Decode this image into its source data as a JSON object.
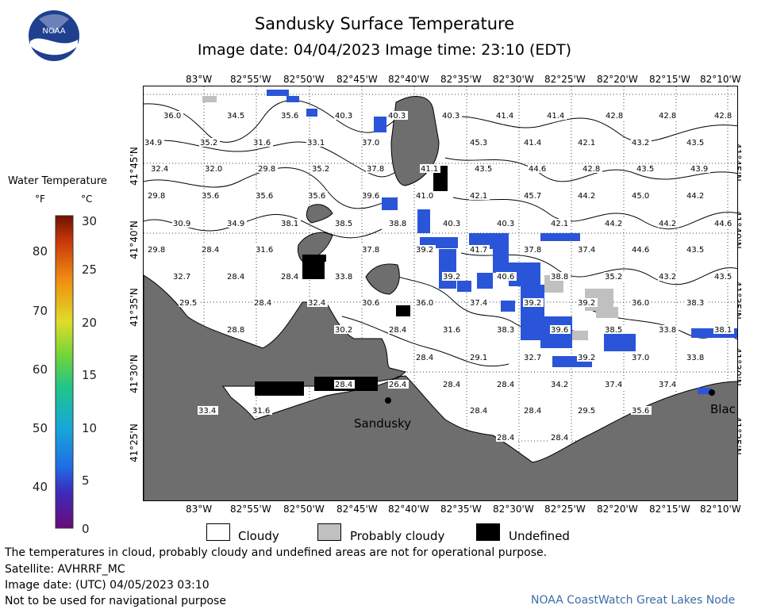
{
  "header": {
    "title": "Sandusky Surface Temperature",
    "subtitle": "Image date: 04/04/2023     Image time: 23:10 (EDT)"
  },
  "legend": {
    "title": "Water Temperature",
    "unit_f": "°F",
    "unit_c": "°C",
    "f_ticks": [
      "80",
      "70",
      "60",
      "50",
      "40"
    ],
    "c_ticks": [
      "30",
      "25",
      "20",
      "15",
      "10",
      "5",
      "0"
    ],
    "categories": [
      {
        "label": "Cloudy",
        "color": "#ffffff"
      },
      {
        "label": "Probably cloudy",
        "color": "#c0c0c0"
      },
      {
        "label": "Undefined",
        "color": "#000000"
      }
    ]
  },
  "axes": {
    "top_lon": [
      "83°W",
      "82°55'W",
      "82°50'W",
      "82°45'W",
      "82°40'W",
      "82°35'W",
      "82°30'W",
      "82°25'W",
      "82°20'W",
      "82°15'W",
      "82°10'W"
    ],
    "bottom_lon": [
      "83°W",
      "82°55'W",
      "82°50'W",
      "82°45'W",
      "82°40'W",
      "82°35'W",
      "82°30'W",
      "82°25'W",
      "82°20'W",
      "82°15'W",
      "82°10'W"
    ],
    "lat": [
      "41°45'N",
      "41°40'N",
      "41°35'N",
      "41°30'N",
      "41°25'N"
    ]
  },
  "map": {
    "place_labels": [
      "Sandusky",
      "Blac"
    ],
    "temperature_labels": [
      "36.0",
      "34.5",
      "35.6",
      "40.3",
      "40.3",
      "40.3",
      "41.4",
      "41.4",
      "42.8",
      "42.8",
      "42.8",
      "34.9",
      "35.2",
      "31.6",
      "33.1",
      "37.0",
      "45.3",
      "41.4",
      "42.1",
      "43.2",
      "43.5",
      "32.4",
      "32.0",
      "29.8",
      "35.2",
      "37.8",
      "41.1",
      "43.5",
      "44.6",
      "42.8",
      "43.5",
      "43.9",
      "29.8",
      "35.6",
      "35.6",
      "35.6",
      "39.6",
      "41.0",
      "42.1",
      "45.7",
      "44.2",
      "45.0",
      "44.2",
      "30.9",
      "34.9",
      "38.1",
      "38.5",
      "38.8",
      "40.3",
      "40.3",
      "42.1",
      "44.2",
      "44.2",
      "44.6",
      "29.8",
      "28.4",
      "31.6",
      "37.8",
      "39.2",
      "41.7",
      "37.8",
      "37.4",
      "44.6",
      "43.5",
      "32.7",
      "28.4",
      "28.4",
      "33.8",
      "39.2",
      "40.6",
      "38.8",
      "35.2",
      "43.2",
      "43.5",
      "29.5",
      "28.4",
      "32.4",
      "30.6",
      "36.0",
      "37.4",
      "39.2",
      "39.2",
      "36.0",
      "38.3",
      "28.8",
      "30.2",
      "28.4",
      "31.6",
      "38.3",
      "39.6",
      "38.5",
      "33.8",
      "38.1",
      "28.4",
      "29.1",
      "32.7",
      "39.2",
      "37.0",
      "33.8",
      "28.4",
      "26.4",
      "28.4",
      "28.4",
      "34.2",
      "37.4",
      "37.4",
      "33.4",
      "31.6",
      "28.4",
      "28.4",
      "29.5",
      "35.6",
      "28.4",
      "28.4"
    ],
    "colors": {
      "land": "#6e6e6e",
      "cloud": "#ffffff",
      "probably_cloudy": "#c0c0c0",
      "undefined": "#000000"
    }
  },
  "footer": {
    "note": "The temperatures in cloud, probably cloudy and undefined areas are not for operational purpose.",
    "satellite": "Satellite: AVHRRF_MC",
    "utc_date": "Image date: (UTC) 04/05/2023  03:10",
    "nav_warning": "Not to be used for navigational purpose",
    "credit": "NOAA CoastWatch Great Lakes Node"
  }
}
